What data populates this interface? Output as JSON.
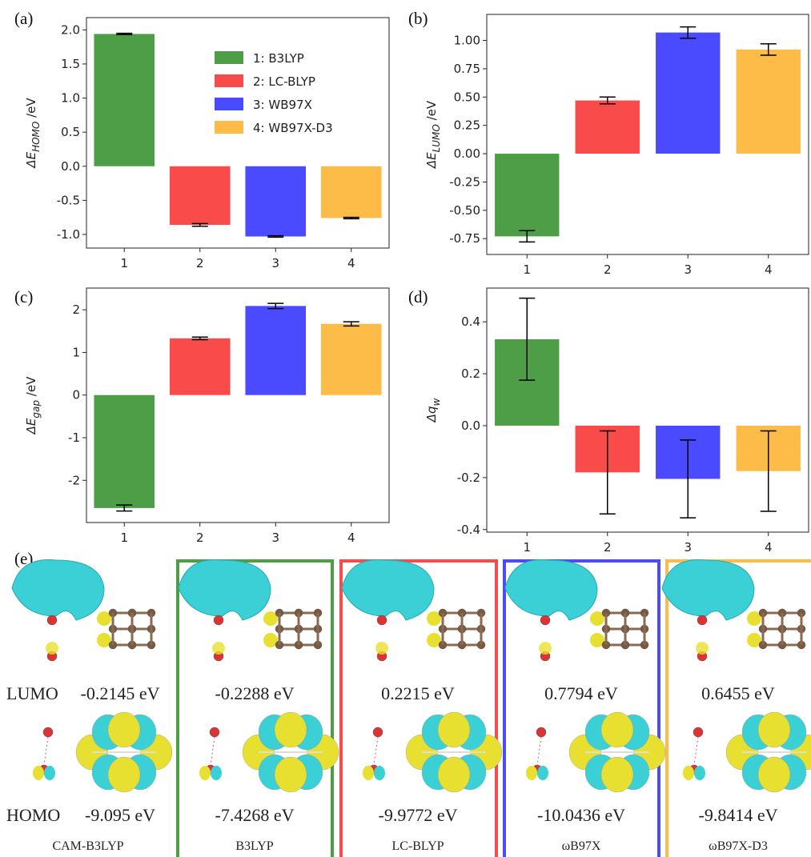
{
  "chart_data": [
    {
      "type": "bar",
      "panel": "(a)",
      "ylabel": "ΔE",
      "ylabel_sub": "HOMO",
      "ylabel_unit": " /eV",
      "categories": [
        "1",
        "2",
        "3",
        "4"
      ],
      "values": [
        1.94,
        -0.86,
        -1.03,
        -0.76
      ],
      "errors": [
        0.01,
        0.02,
        0.01,
        0.01
      ],
      "colors": [
        "#4d9e46",
        "#fa4b4b",
        "#4a4aff",
        "#fdbb48"
      ],
      "ylim": [
        -1.2,
        2.18
      ],
      "yticks": [
        {
          "value": -1.0,
          "label": "-1.0"
        },
        -0.5,
        {
          "value": 0,
          "label": "0.0"
        },
        0.5,
        {
          "value": 1.0,
          "label": "1.0"
        },
        1.5,
        {
          "value": 2.0,
          "label": "2.0"
        }
      ],
      "legend": {
        "labels": [
          "1: B3LYP",
          "2: LC-BLYP",
          "3: WB97X",
          "4: WB97X-D3"
        ],
        "loc": "upper right"
      }
    },
    {
      "type": "bar",
      "panel": "(b)",
      "ylabel": "ΔE",
      "ylabel_sub": "LUMO",
      "ylabel_unit": " /eV",
      "categories": [
        "1",
        "2",
        "3",
        "4"
      ],
      "values": [
        -0.73,
        0.47,
        1.07,
        0.92
      ],
      "errors": [
        0.05,
        0.03,
        0.05,
        0.05
      ],
      "colors": [
        "#4d9e46",
        "#fa4b4b",
        "#4a4aff",
        "#fdbb48"
      ],
      "ylim": [
        -0.89,
        1.23
      ],
      "yticks": [
        {
          "value": -0.75,
          "label": "-0.75"
        },
        {
          "value": -0.5,
          "label": "-0.50"
        },
        {
          "value": -0.25,
          "label": "-0.25"
        },
        {
          "value": 0,
          "label": "0.00"
        },
        0.25,
        {
          "value": 0.5,
          "label": "0.50"
        },
        0.75,
        {
          "value": 1.0,
          "label": "1.00"
        }
      ]
    },
    {
      "type": "bar",
      "panel": "(c)",
      "ylabel": "ΔE",
      "ylabel_sub": "gap",
      "ylabel_unit": " /eV",
      "categories": [
        "1",
        "2",
        "3",
        "4"
      ],
      "values": [
        -2.65,
        1.33,
        2.09,
        1.67
      ],
      "errors": [
        0.07,
        0.03,
        0.06,
        0.05
      ],
      "colors": [
        "#4d9e46",
        "#fa4b4b",
        "#4a4aff",
        "#fdbb48"
      ],
      "ylim": [
        -2.99,
        2.51
      ],
      "yticks": [
        -2,
        -1,
        0,
        1,
        2
      ]
    },
    {
      "type": "bar",
      "panel": "(d)",
      "ylabel": "Δq",
      "ylabel_sub": "w",
      "categories": [
        "1",
        "2",
        "3",
        "4"
      ],
      "values": [
        0.333,
        -0.18,
        -0.205,
        -0.175
      ],
      "errors": [
        0.158,
        0.16,
        0.15,
        0.155
      ],
      "colors": [
        "#4d9e46",
        "#fa4b4b",
        "#4a4aff",
        "#fdbb48"
      ],
      "ylim": [
        -0.41,
        0.53
      ],
      "yticks": [
        {
          "value": -0.4,
          "label": "-0.4"
        },
        -0.2,
        {
          "value": 0,
          "label": "0.0"
        },
        0.2,
        0.4
      ]
    }
  ],
  "panel_e": {
    "label": "(e)",
    "rows": [
      "LUMO",
      "HOMO"
    ],
    "columns": [
      {
        "method": "CAM-B3LYP",
        "lumo": "-0.2145 eV",
        "homo": "-9.095 eV"
      },
      {
        "method": "B3LYP",
        "lumo": "-0.2288 eV",
        "homo": "-7.4268 eV"
      },
      {
        "method": "LC-BLYP",
        "lumo": "0.2215 eV",
        "homo": "-9.9772 eV"
      },
      {
        "method": "ωB97X",
        "lumo": "0.7794 eV",
        "homo": "-10.0436 eV"
      },
      {
        "method": "ωB97X-D3",
        "lumo": "0.6455 eV",
        "homo": "-9.8414 eV"
      }
    ]
  }
}
